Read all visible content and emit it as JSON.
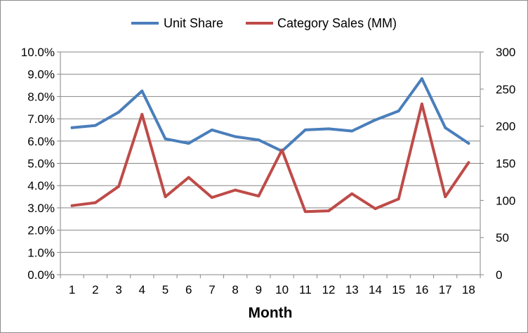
{
  "chart_data": {
    "type": "line",
    "title": "",
    "xlabel": "Month",
    "ylabel_left": "",
    "ylabel_right": "",
    "categories": [
      "1",
      "2",
      "3",
      "4",
      "5",
      "6",
      "7",
      "8",
      "9",
      "10",
      "11",
      "12",
      "13",
      "14",
      "15",
      "16",
      "17",
      "18"
    ],
    "y_left_ticks": [
      "0.0%",
      "1.0%",
      "2.0%",
      "3.0%",
      "4.0%",
      "5.0%",
      "6.0%",
      "7.0%",
      "8.0%",
      "9.0%",
      "10.0%"
    ],
    "y_right_ticks": [
      "0",
      "50",
      "100",
      "150",
      "200",
      "250",
      "300"
    ],
    "ylim_left": [
      0,
      10
    ],
    "ylim_right": [
      0,
      300
    ],
    "grid": "horizontal",
    "legend_position": "top",
    "series": [
      {
        "name": "Unit Share",
        "axis": "left",
        "color": "#4a7ebb",
        "values": [
          6.6,
          6.7,
          7.3,
          8.25,
          6.1,
          5.9,
          6.5,
          6.2,
          6.05,
          5.55,
          6.5,
          6.55,
          6.45,
          6.95,
          7.35,
          8.8,
          6.6,
          5.9
        ]
      },
      {
        "name": "Category Sales (MM)",
        "axis": "right",
        "color": "#be4b48",
        "values": [
          93,
          97,
          119,
          216,
          105,
          131,
          104,
          114,
          106,
          168,
          85,
          86,
          109,
          89,
          102,
          230,
          105,
          151
        ]
      }
    ]
  }
}
